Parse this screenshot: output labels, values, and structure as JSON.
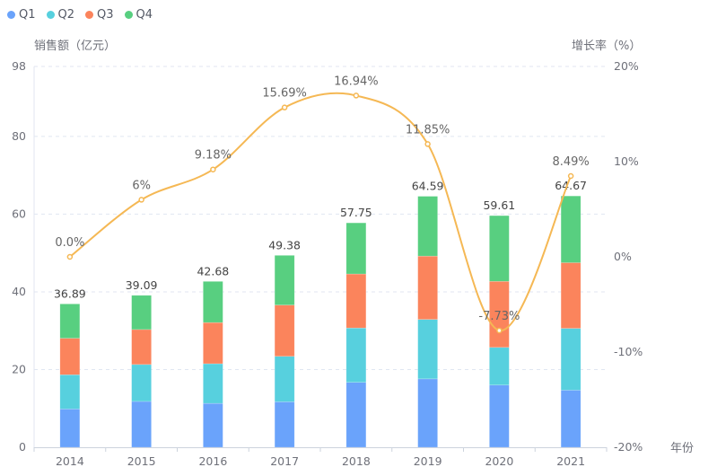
{
  "chart_data": {
    "type": "bar",
    "stacked": true,
    "title": "",
    "categories": [
      "2014",
      "2015",
      "2016",
      "2017",
      "2018",
      "2019",
      "2020",
      "2021"
    ],
    "xlabel": "年份",
    "ylabel": "销售额（亿元）",
    "ylabel_right": "增长率（%）",
    "ylim": [
      0,
      98
    ],
    "yticks": [
      0,
      20,
      40,
      60,
      80,
      98
    ],
    "ylim_right": [
      -20,
      20
    ],
    "yticks_right": [
      -20,
      -10,
      0,
      10,
      20
    ],
    "ytick_labels_right": [
      "-20%",
      "-10%",
      "0%",
      "10%",
      "20%"
    ],
    "grid": true,
    "legend_position": "top-left",
    "series": [
      {
        "name": "Q1",
        "type": "bar",
        "color": "#6aa3fb",
        "values": [
          9.86,
          11.8,
          11.3,
          11.7,
          16.7,
          17.6,
          16.0,
          14.7
        ]
      },
      {
        "name": "Q2",
        "type": "bar",
        "color": "#57d0de",
        "values": [
          8.8,
          9.5,
          10.2,
          11.7,
          14.0,
          15.3,
          9.7,
          15.9
        ]
      },
      {
        "name": "Q3",
        "type": "bar",
        "color": "#fb845c",
        "values": [
          9.4,
          9.0,
          10.6,
          13.2,
          13.9,
          16.3,
          17.0,
          16.9
        ]
      },
      {
        "name": "Q4",
        "type": "bar",
        "color": "#58cf80",
        "values": [
          8.83,
          8.79,
          10.58,
          12.78,
          13.15,
          15.39,
          16.91,
          17.17
        ]
      }
    ],
    "totals": [
      36.89,
      39.09,
      42.68,
      49.38,
      57.75,
      64.59,
      59.61,
      64.67
    ],
    "total_labels": [
      "36.89",
      "39.09",
      "42.68",
      "49.38",
      "57.75",
      "64.59",
      "59.61",
      "64.67"
    ],
    "growth": {
      "name": "增长率",
      "type": "line",
      "smooth": true,
      "axis": "right",
      "color": "#f5b854",
      "values": [
        0.0,
        6,
        9.18,
        15.69,
        16.94,
        11.85,
        -7.73,
        8.49
      ],
      "labels": [
        "0.0%",
        "6%",
        "9.18%",
        "15.69%",
        "16.94%",
        "11.85%",
        "-7.73%",
        "8.49%"
      ]
    }
  }
}
